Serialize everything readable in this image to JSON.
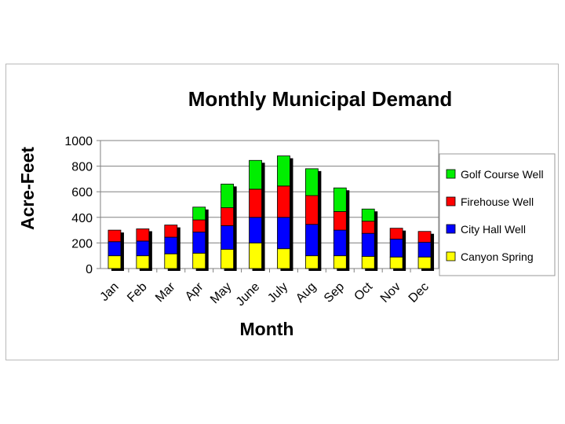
{
  "chart_data": {
    "type": "bar",
    "stacked": true,
    "title": "Monthly Municipal Demand",
    "xlabel": "Month",
    "ylabel": "Acre-Feet",
    "ylim": [
      0,
      1000
    ],
    "yticks": [
      0,
      200,
      400,
      600,
      800,
      1000
    ],
    "grid": true,
    "legend_position": "right",
    "categories": [
      "Jan",
      "Feb",
      "Mar",
      "Apr",
      "May",
      "June",
      "July",
      "Aug",
      "Sep",
      "Oct",
      "Nov",
      "Dec"
    ],
    "series": [
      {
        "name": "Canyon Spring",
        "color": "#ffff00",
        "values": [
          100,
          100,
          115,
          120,
          150,
          200,
          155,
          100,
          100,
          95,
          90,
          90
        ]
      },
      {
        "name": "City Hall Well",
        "color": "#0000ff",
        "values": [
          110,
          115,
          130,
          165,
          185,
          200,
          245,
          245,
          200,
          180,
          140,
          115
        ]
      },
      {
        "name": "Firehouse Well",
        "color": "#ff0000",
        "values": [
          90,
          95,
          95,
          95,
          140,
          220,
          245,
          225,
          145,
          95,
          85,
          85
        ]
      },
      {
        "name": "Golf Course Well",
        "color": "#00ee00",
        "values": [
          0,
          0,
          0,
          100,
          185,
          225,
          235,
          210,
          185,
          95,
          0,
          0
        ]
      }
    ]
  }
}
